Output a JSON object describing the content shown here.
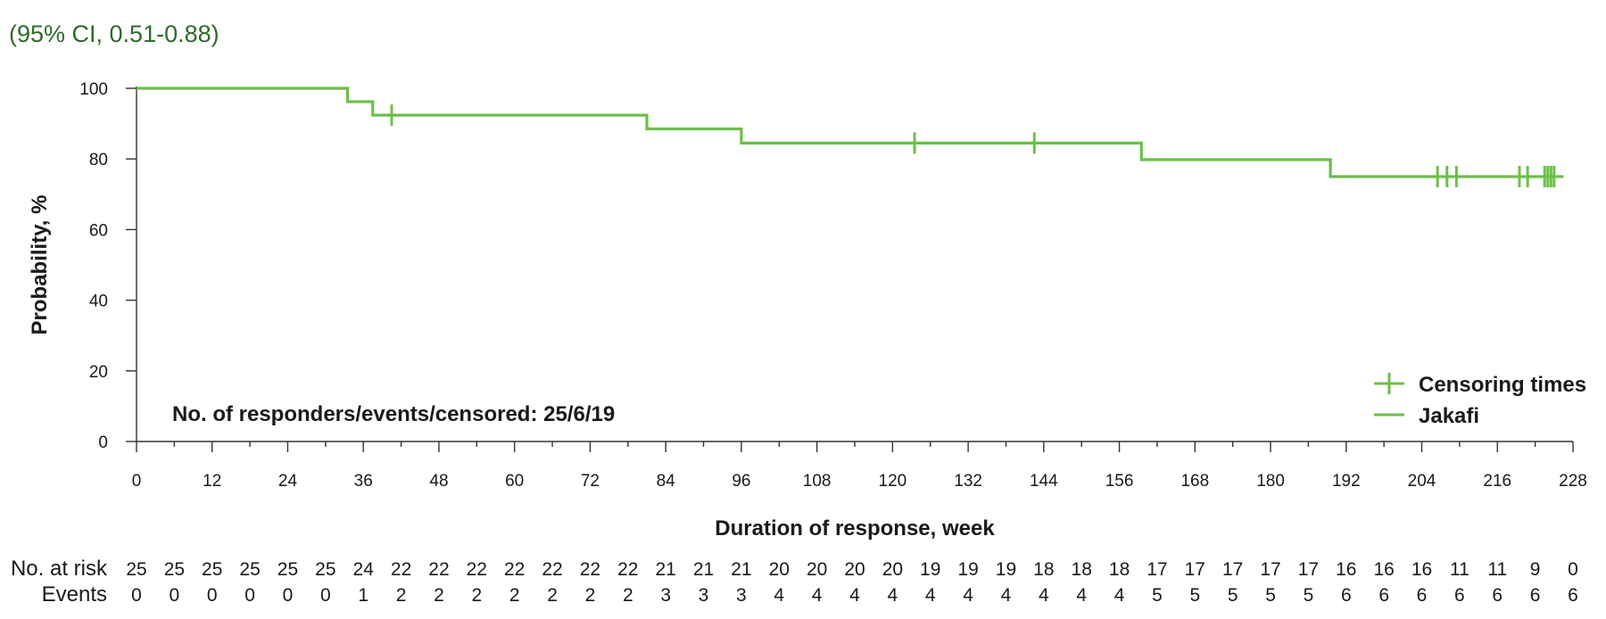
{
  "header": {
    "ci_text": "(95% CI, 0.51-0.88)"
  },
  "chart_data": {
    "type": "line",
    "xlabel": "Duration of response, week",
    "ylabel": "Probability, %",
    "xlim": [
      0,
      228
    ],
    "ylim": [
      0,
      100
    ],
    "x_ticks": [
      0,
      12,
      24,
      36,
      48,
      60,
      72,
      84,
      96,
      108,
      120,
      132,
      144,
      156,
      168,
      180,
      192,
      204,
      216,
      228
    ],
    "y_ticks": [
      0,
      20,
      40,
      60,
      80,
      100
    ],
    "colors": {
      "series": "#6cbf4a",
      "header": "#2e6b2a"
    },
    "legend": {
      "position": "bottom-right",
      "entries": [
        {
          "label": "Censoring times",
          "marker": "plus"
        },
        {
          "label": "Jakafi",
          "marker": "line"
        }
      ]
    },
    "annotation": "No. of responders/events/censored: 25/6/19",
    "series": [
      {
        "name": "Jakafi",
        "step_points": [
          [
            0,
            100
          ],
          [
            33.5,
            100
          ],
          [
            33.5,
            96.2
          ],
          [
            37.5,
            96.2
          ],
          [
            37.5,
            92.4
          ],
          [
            81,
            92.4
          ],
          [
            81,
            88.5
          ],
          [
            96,
            88.5
          ],
          [
            96,
            84.5
          ],
          [
            159.5,
            84.5
          ],
          [
            159.5,
            79.8
          ],
          [
            189.5,
            79.8
          ],
          [
            189.5,
            75
          ],
          [
            226.5,
            75
          ]
        ],
        "censor_times": [
          {
            "x": 40.5,
            "y": 92.4
          },
          {
            "x": 123.5,
            "y": 84.5
          },
          {
            "x": 142.5,
            "y": 84.5
          },
          {
            "x": 206.5,
            "y": 75
          },
          {
            "x": 208,
            "y": 75
          },
          {
            "x": 209.5,
            "y": 75
          },
          {
            "x": 219.5,
            "y": 75
          },
          {
            "x": 220.8,
            "y": 75
          },
          {
            "x": 223.5,
            "y": 75
          },
          {
            "x": 224,
            "y": 75
          },
          {
            "x": 224.5,
            "y": 75
          },
          {
            "x": 225,
            "y": 75
          }
        ]
      }
    ],
    "risk_table": {
      "at_risk_label": "No. at risk",
      "events_label": "Events",
      "x": [
        0,
        6,
        12,
        18,
        24,
        30,
        36,
        42,
        48,
        54,
        60,
        66,
        72,
        78,
        84,
        90,
        96,
        102,
        108,
        114,
        120,
        126,
        132,
        138,
        144,
        150,
        156,
        162,
        168,
        174,
        180,
        186,
        192,
        198,
        204,
        210,
        216,
        222,
        228
      ],
      "at_risk": [
        "25",
        "25",
        "25",
        "25",
        "25",
        "25",
        "24",
        "22",
        "22",
        "22",
        "22",
        "22",
        "22",
        "22",
        "21",
        "21",
        "21",
        "20",
        "20",
        "20",
        "20",
        "19",
        "19",
        "19",
        "18",
        "18",
        "18",
        "17",
        "17",
        "17",
        "17",
        "17",
        "16",
        "16",
        "16",
        "11",
        "11",
        "9",
        "0"
      ],
      "events": [
        "0",
        "0",
        "0",
        "0",
        "0",
        "0",
        "1",
        "2",
        "2",
        "2",
        "2",
        "2",
        "2",
        "2",
        "3",
        "3",
        "3",
        "4",
        "4",
        "4",
        "4",
        "4",
        "4",
        "4",
        "4",
        "4",
        "4",
        "5",
        "5",
        "5",
        "5",
        "5",
        "6",
        "6",
        "6",
        "6",
        "6",
        "6",
        "6"
      ]
    }
  }
}
